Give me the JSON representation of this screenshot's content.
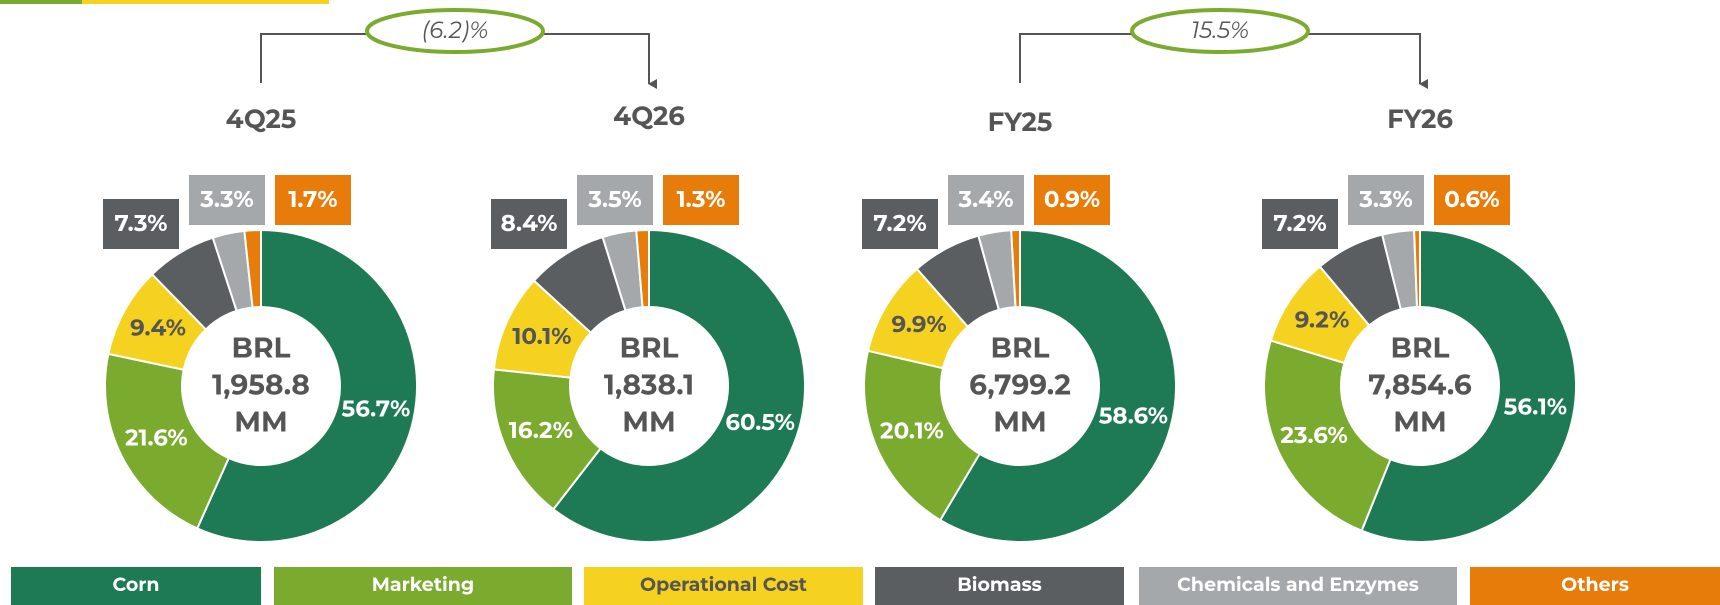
{
  "chart_data": [
    {
      "type": "pie",
      "title": "4Q25",
      "center_lines": [
        "BRL",
        "1,958.8",
        "MM"
      ],
      "values": [
        56.7,
        21.6,
        9.4,
        7.3,
        3.3,
        1.7
      ],
      "value_labels": [
        "56.7%",
        "21.6%",
        "9.4%",
        "7.3%",
        "3.3%",
        "1.7%"
      ]
    },
    {
      "type": "pie",
      "title": "4Q26",
      "center_lines": [
        "BRL",
        "1,838.1",
        "MM"
      ],
      "values": [
        60.5,
        16.2,
        10.1,
        8.4,
        3.5,
        1.3
      ],
      "value_labels": [
        "60.5%",
        "16.2%",
        "10.1%",
        "8.4%",
        "3.5%",
        "1.3%"
      ]
    },
    {
      "type": "pie",
      "title": "FY25",
      "center_lines": [
        "BRL",
        "6,799.2",
        "MM"
      ],
      "values": [
        58.6,
        20.1,
        9.9,
        7.2,
        3.4,
        0.9
      ],
      "value_labels": [
        "58.6%",
        "20.1%",
        "9.9%",
        "7.2%",
        "3.4%",
        "0.9%"
      ]
    },
    {
      "type": "pie",
      "title": "FY26",
      "center_lines": [
        "BRL",
        "7,854.6",
        "MM"
      ],
      "values": [
        56.1,
        23.6,
        9.2,
        7.2,
        3.3,
        0.6
      ],
      "value_labels": [
        "56.1%",
        "23.6%",
        "9.2%",
        "7.2%",
        "3.3%",
        "0.6%"
      ]
    }
  ],
  "comparisons": [
    "(6.2)%",
    "15.5%"
  ],
  "legend": {
    "labels": [
      "Corn",
      "Marketing",
      "Operational Cost",
      "Biomass",
      "Chemicals and Enzymes",
      "Others"
    ],
    "colors": [
      "#1e7a55",
      "#7aab2e",
      "#f5d21f",
      "#5a5e61",
      "#a5a8aa",
      "#e87c0b"
    ]
  }
}
